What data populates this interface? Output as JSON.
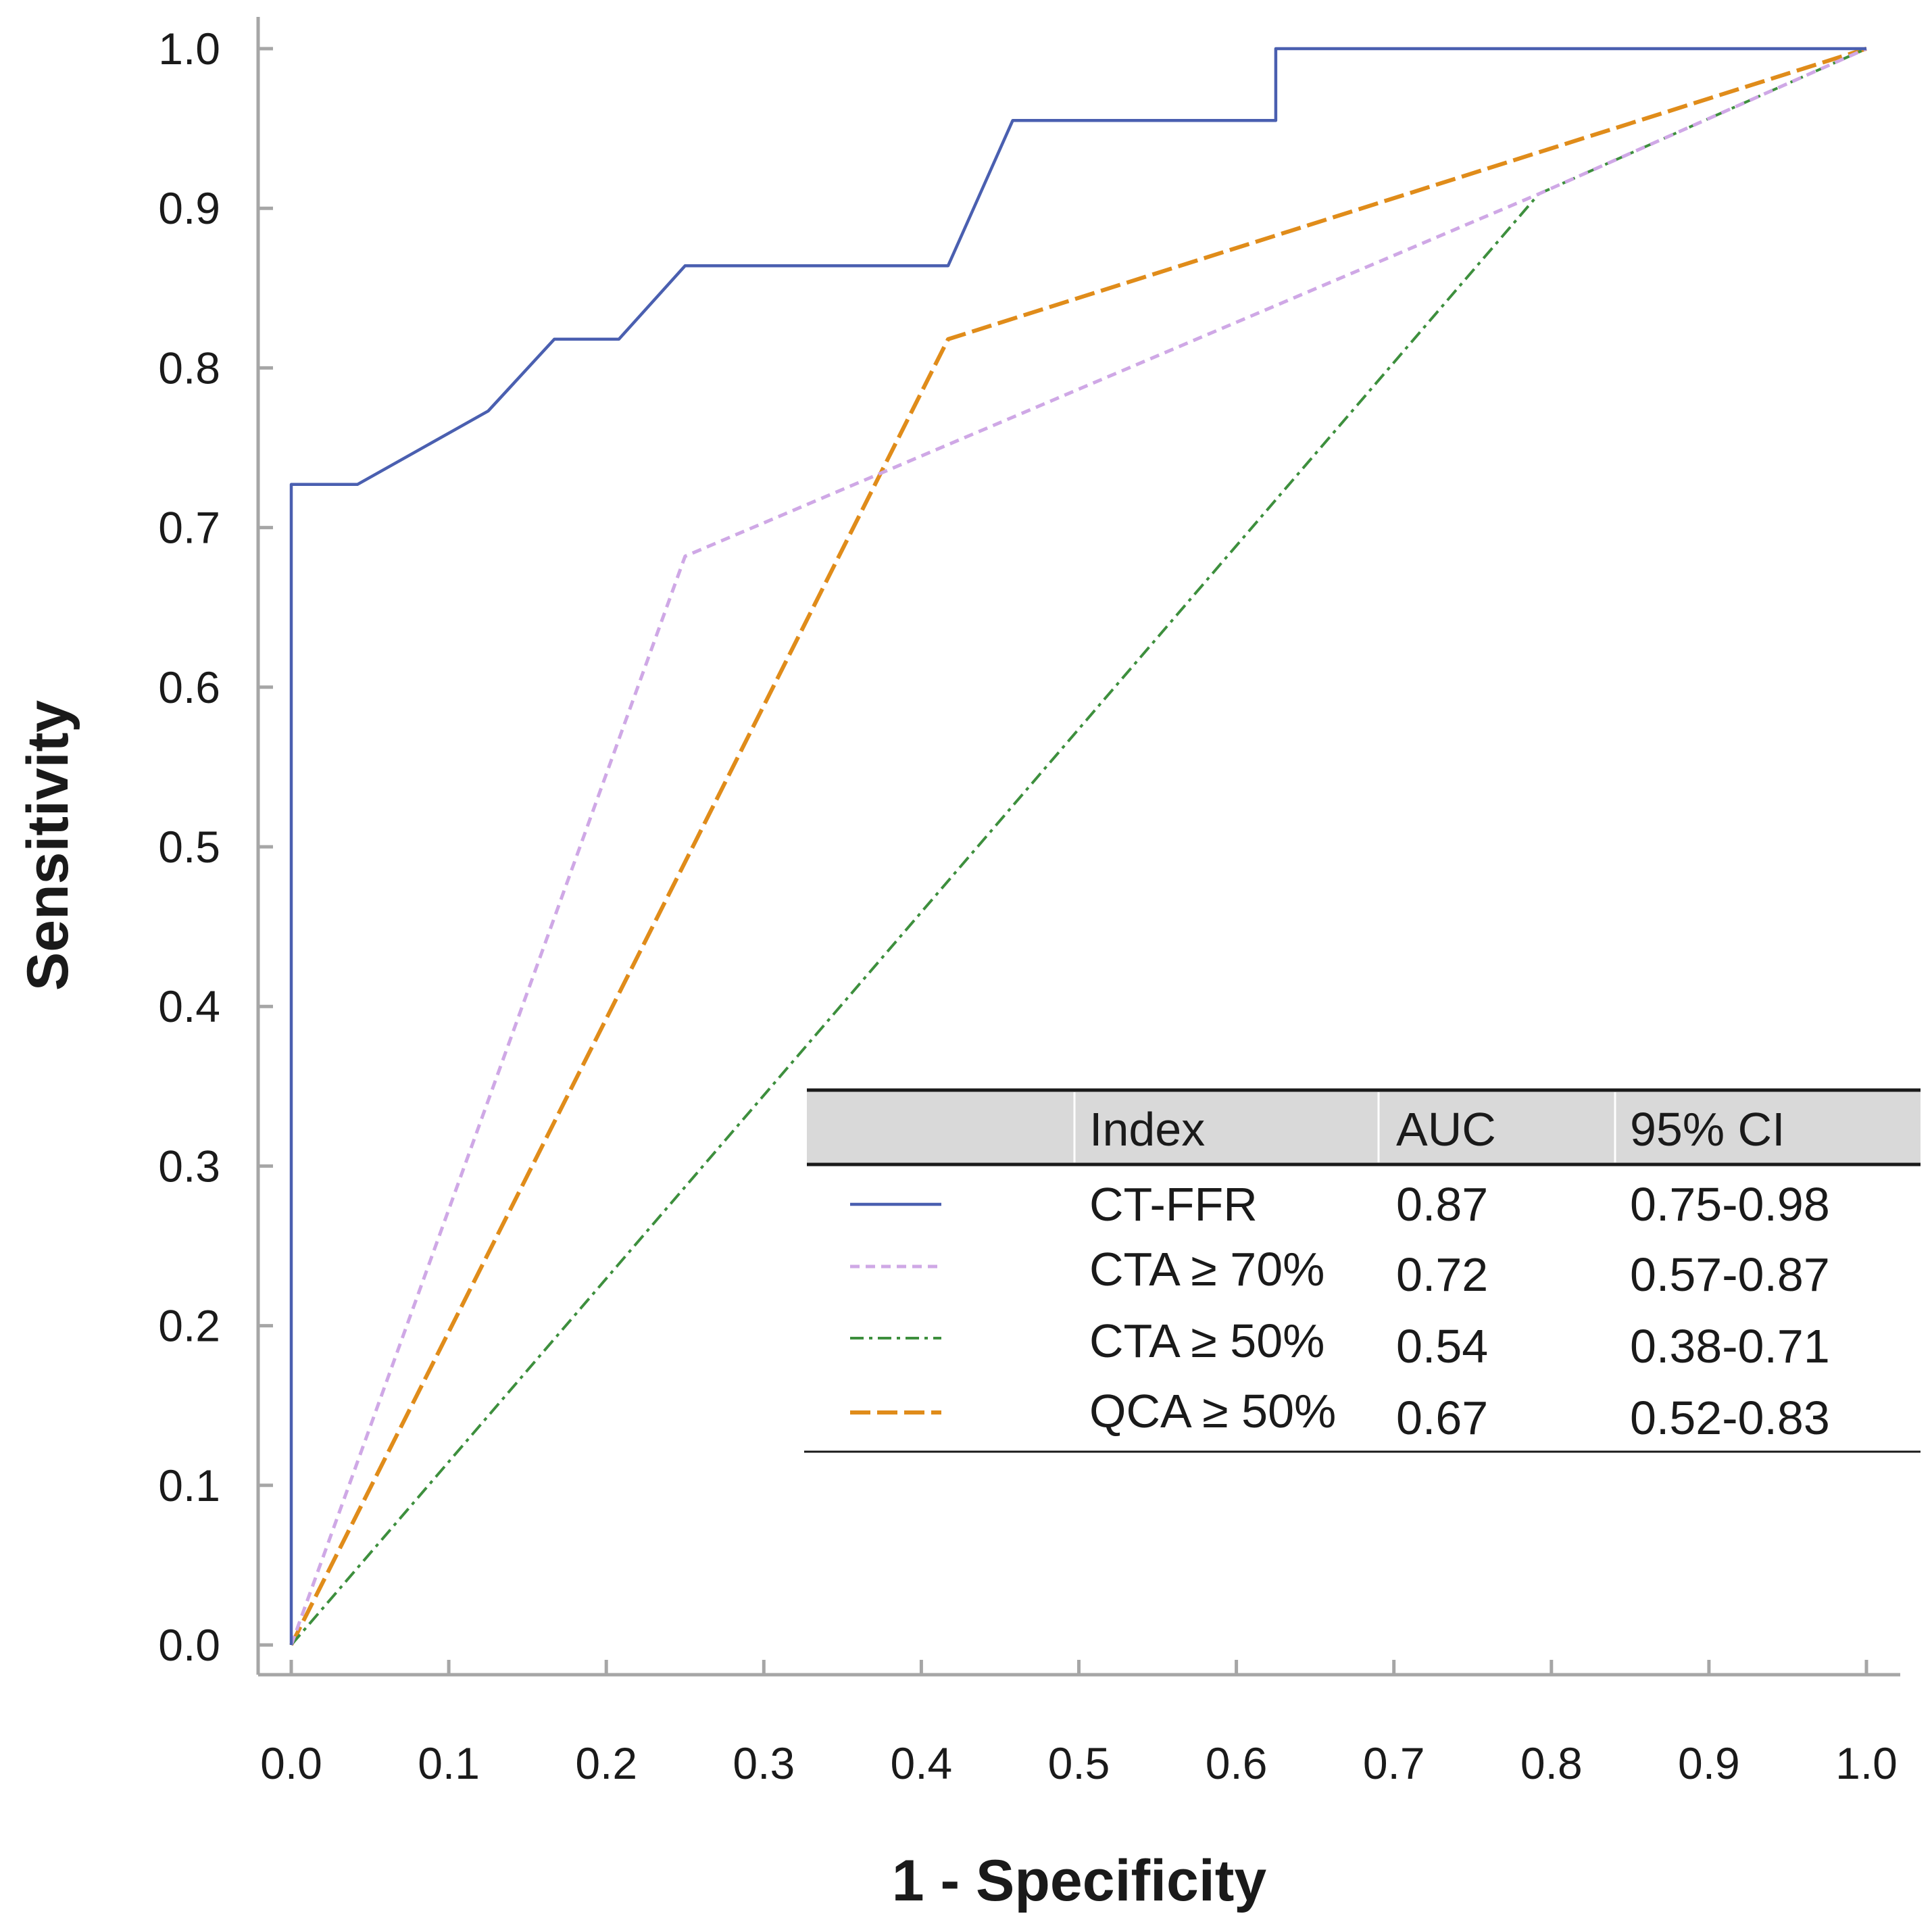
{
  "chart_data": {
    "type": "line",
    "title": "",
    "xlabel": "1 - Specificity",
    "ylabel": "Sensitivity",
    "xlim": [
      0,
      1
    ],
    "ylim": [
      0,
      1
    ],
    "grid": false,
    "x_ticks": [
      "0.0",
      "0.1",
      "0.2",
      "0.3",
      "0.4",
      "0.5",
      "0.6",
      "0.7",
      "0.8",
      "0.9",
      "1.0"
    ],
    "y_ticks": [
      "0.0",
      "0.1",
      "0.2",
      "0.3",
      "0.4",
      "0.5",
      "0.6",
      "0.7",
      "0.8",
      "0.9",
      "1.0"
    ],
    "series": [
      {
        "name": "CT-FFR",
        "color": "#4a5fb0",
        "style": "solid",
        "x": [
          0,
          0,
          0.042,
          0.125,
          0.167,
          0.208,
          0.25,
          0.417,
          0.458,
          0.625,
          0.625,
          1.0
        ],
        "y": [
          0,
          0.727,
          0.727,
          0.773,
          0.818,
          0.818,
          0.864,
          0.864,
          0.955,
          0.955,
          1.0,
          1.0
        ]
      },
      {
        "name": "CTA ≥ 70%",
        "color": "#cfa8e6",
        "style": "dotted",
        "x": [
          0,
          0.25,
          0.792,
          1.0
        ],
        "y": [
          0,
          0.682,
          0.909,
          1.0
        ]
      },
      {
        "name": "CTA ≥ 50%",
        "color": "#3d8f3d",
        "style": "dashdot",
        "x": [
          0,
          0.792,
          1.0
        ],
        "y": [
          0,
          0.909,
          1.0
        ]
      },
      {
        "name": "QCA ≥ 50%",
        "color": "#e08c1a",
        "style": "dashed",
        "x": [
          0,
          0.417,
          1.0
        ],
        "y": [
          0,
          0.818,
          1.0
        ]
      }
    ],
    "legend": {
      "position": "lower-right",
      "headers": [
        "Index",
        "AUC",
        "95% CI"
      ],
      "rows": [
        {
          "index": "CT-FFR",
          "auc": "0.87",
          "ci": "0.75-0.98"
        },
        {
          "index": "CTA ≥ 70%",
          "auc": "0.72",
          "ci": "0.57-0.87"
        },
        {
          "index": "CTA ≥ 50%",
          "auc": "0.54",
          "ci": "0.38-0.71"
        },
        {
          "index": "QCA ≥ 50%",
          "auc": "0.67",
          "ci": "0.52-0.83"
        }
      ]
    }
  }
}
